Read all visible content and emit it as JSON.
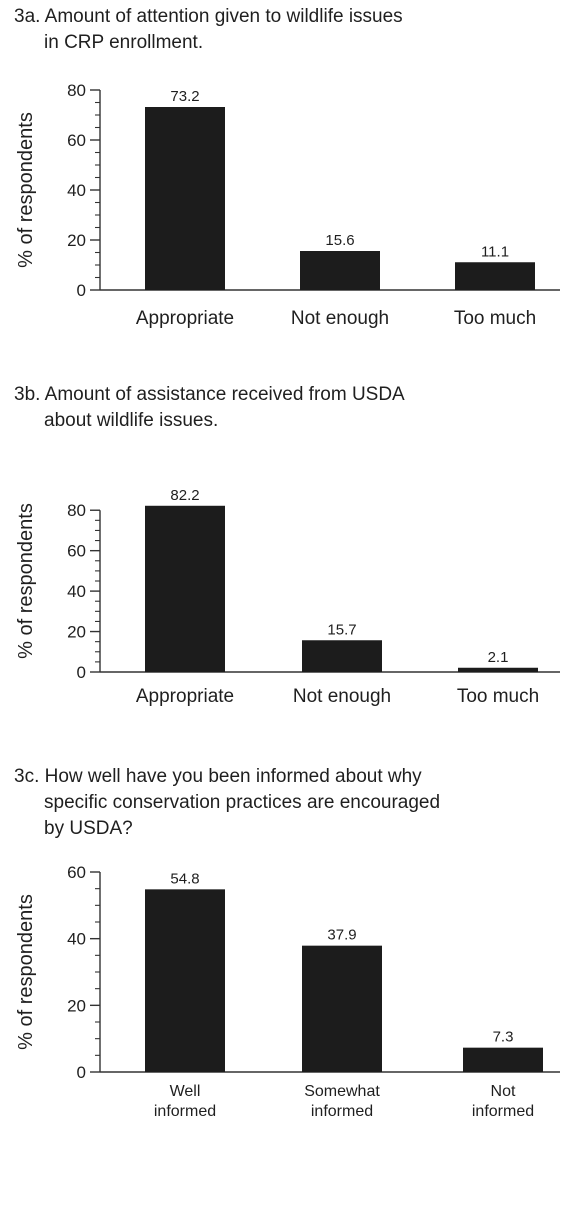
{
  "chart_data": [
    {
      "type": "bar",
      "title_lines": [
        "3a. Amount of attention given to wildlife issues",
        "in CRP enrollment."
      ],
      "ylabel": "% of respondents",
      "xlabel": "",
      "ylim": [
        0,
        80
      ],
      "yticks": [
        0,
        20,
        40,
        60,
        80
      ],
      "grid": false,
      "legend": "none",
      "categories": [
        [
          "Appropriate"
        ],
        [
          "Not enough"
        ],
        [
          "Too much"
        ]
      ],
      "values": [
        73.2,
        15.6,
        11.1
      ],
      "value_labels": [
        "73.2",
        "15.6",
        "11.1"
      ],
      "bar_color": "#1c1c1c"
    },
    {
      "type": "bar",
      "title_lines": [
        "3b. Amount of assistance received from USDA",
        "about  wildlife issues."
      ],
      "ylabel": "% of respondents",
      "xlabel": "",
      "ylim": [
        0,
        90
      ],
      "yticks": [
        0,
        20,
        40,
        60,
        80
      ],
      "grid": false,
      "legend": "none",
      "categories": [
        [
          "Appropriate"
        ],
        [
          "Not enough"
        ],
        [
          "Too much"
        ]
      ],
      "values": [
        82.2,
        15.7,
        2.1
      ],
      "value_labels": [
        "82.2",
        "15.7",
        "2.1"
      ],
      "bar_color": "#1c1c1c"
    },
    {
      "type": "bar",
      "title_lines": [
        "3c. How well have you been informed about why",
        "specific conservation practices are encouraged",
        "by  USDA?"
      ],
      "ylabel": "% of respondents",
      "xlabel": "",
      "ylim": [
        0,
        60
      ],
      "yticks": [
        0,
        20,
        40,
        60
      ],
      "grid": false,
      "legend": "none",
      "categories": [
        [
          "Well",
          "informed"
        ],
        [
          "Somewhat",
          "informed"
        ],
        [
          "Not",
          "informed"
        ]
      ],
      "values": [
        54.8,
        37.9,
        7.3
      ],
      "value_labels": [
        "54.8",
        "37.9",
        "7.3"
      ],
      "bar_color": "#1c1c1c"
    }
  ]
}
